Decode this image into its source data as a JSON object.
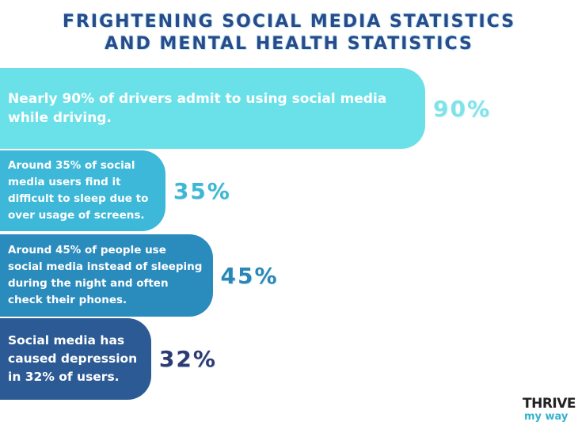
{
  "chart_data": {
    "type": "bar",
    "orientation": "horizontal",
    "title": "FRIGHTENING SOCIAL MEDIA STATISTICS\nAND MENTAL HEALTH STATISTICS",
    "categories": [
      "Nearly 90% of drivers admit to using social media while driving.",
      "Around 35% of social media users find it difficult to sleep due to over usage of screens.",
      "Around 45% of people use social media instead of sleeping during the night and often check their phones.",
      "Social media has caused depression in 32% of users."
    ],
    "values": [
      90,
      35,
      45,
      32
    ],
    "value_labels": [
      "90%",
      "35%",
      "45%",
      "32%"
    ],
    "colors": [
      "#6ae1e8",
      "#3db8d8",
      "#2a8bbd",
      "#2c5a94"
    ],
    "label_colors": [
      "#7fe4ea",
      "#3fb6d4",
      "#2b87b6",
      "#2e3a72"
    ],
    "logo": {
      "line1": "THRIVE",
      "line2": "my way"
    }
  }
}
